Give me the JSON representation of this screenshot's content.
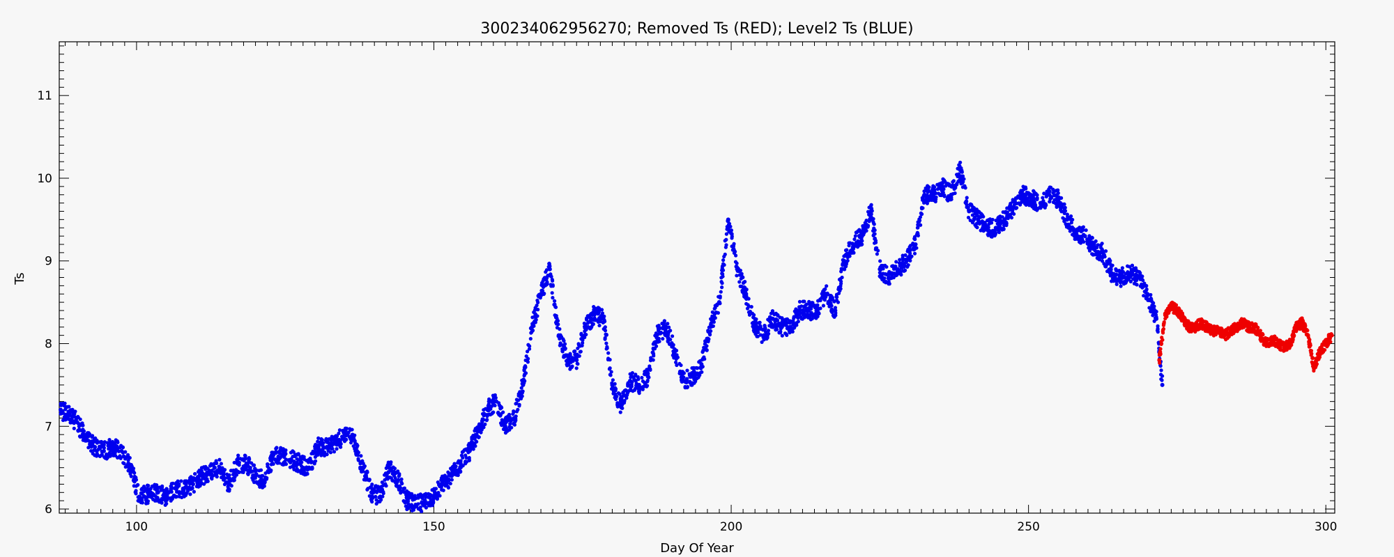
{
  "chart_data": {
    "type": "scatter",
    "title": "300234062956270; Removed Ts (RED); Level2 Ts (BLUE)",
    "xlabel": "Day Of Year",
    "ylabel": "Ts",
    "xlim": [
      87,
      301.5
    ],
    "ylim": [
      5.95,
      11.65
    ],
    "xticks": [
      100,
      150,
      200,
      250,
      300
    ],
    "yticks": [
      6,
      7,
      8,
      9,
      10,
      11
    ],
    "grid": false,
    "colors": {
      "level2": "#0000ee",
      "removed": "#ee0000",
      "axis": "#000000",
      "background": "#f7f7f7"
    },
    "series": [
      {
        "name": "Level2 Ts (BLUE)",
        "color": "#0000ee",
        "x": [
          87.0,
          88.5,
          90.0,
          91.5,
          93.0,
          94.5,
          96.0,
          97.5,
          99.0,
          100.5,
          102.0,
          103.5,
          105.0,
          106.5,
          108.0,
          109.5,
          111.0,
          112.5,
          114.0,
          115.5,
          117.0,
          118.5,
          120.0,
          121.5,
          123.0,
          124.5,
          126.0,
          127.5,
          129.0,
          130.5,
          132.0,
          133.5,
          135.0,
          136.5,
          138.0,
          139.5,
          141.0,
          142.5,
          144.0,
          145.5,
          147.0,
          148.5,
          150.0,
          151.5,
          153.0,
          154.5,
          156.0,
          157.5,
          159.0,
          160.5,
          162.0,
          163.5,
          165.0,
          166.5,
          168.0,
          169.5,
          171.0,
          172.5,
          174.0,
          175.5,
          177.0,
          178.5,
          180.0,
          181.5,
          183.0,
          184.5,
          186.0,
          187.5,
          189.0,
          190.5,
          192.0,
          193.5,
          195.0,
          196.5,
          198.0,
          199.5,
          201.0,
          202.5,
          204.0,
          205.5,
          207.0,
          208.5,
          210.0,
          211.5,
          213.0,
          214.5,
          216.0,
          217.5,
          219.0,
          220.5,
          222.0,
          223.5,
          225.0,
          226.5,
          228.0,
          229.5,
          231.0,
          232.5,
          234.0,
          235.5,
          237.0,
          238.5,
          240.0,
          241.5,
          243.0,
          244.5,
          246.0,
          247.5,
          249.0,
          250.5,
          252.0,
          253.5,
          255.0,
          256.5,
          258.0,
          259.5,
          261.0,
          262.5,
          264.0,
          265.5,
          267.0,
          268.5,
          270.0,
          271.5,
          272.5
        ],
        "y": [
          7.2,
          7.15,
          7.05,
          6.85,
          6.75,
          6.7,
          6.75,
          6.7,
          6.5,
          6.15,
          6.18,
          6.2,
          6.15,
          6.25,
          6.25,
          6.3,
          6.4,
          6.45,
          6.5,
          6.3,
          6.55,
          6.55,
          6.4,
          6.35,
          6.65,
          6.65,
          6.6,
          6.55,
          6.5,
          6.75,
          6.75,
          6.8,
          6.9,
          6.85,
          6.5,
          6.2,
          6.15,
          6.5,
          6.35,
          6.1,
          6.05,
          6.1,
          6.15,
          6.3,
          6.4,
          6.55,
          6.7,
          6.95,
          7.2,
          7.3,
          7.0,
          7.1,
          7.5,
          8.2,
          8.6,
          8.9,
          8.1,
          7.8,
          7.8,
          8.2,
          8.35,
          8.3,
          7.5,
          7.25,
          7.55,
          7.5,
          7.6,
          8.1,
          8.2,
          7.9,
          7.55,
          7.6,
          7.75,
          8.2,
          8.5,
          9.5,
          8.9,
          8.6,
          8.2,
          8.1,
          8.3,
          8.2,
          8.2,
          8.4,
          8.4,
          8.4,
          8.6,
          8.4,
          9.0,
          9.2,
          9.3,
          9.6,
          8.9,
          8.8,
          8.9,
          9.0,
          9.2,
          9.8,
          9.8,
          9.9,
          9.8,
          10.1,
          9.6,
          9.5,
          9.4,
          9.4,
          9.5,
          9.65,
          9.8,
          9.75,
          9.7,
          9.8,
          9.75,
          9.5,
          9.35,
          9.3,
          9.15,
          9.1,
          8.85,
          8.8,
          8.85,
          8.8,
          8.6,
          8.3,
          7.5
        ]
      },
      {
        "name": "Removed Ts (RED)",
        "color": "#ee0000",
        "x": [
          272.0,
          273.0,
          274.0,
          275.0,
          276.0,
          277.0,
          278.0,
          279.0,
          280.0,
          281.0,
          282.0,
          283.0,
          284.0,
          285.0,
          286.0,
          287.0,
          288.0,
          289.0,
          290.0,
          291.0,
          292.0,
          293.0,
          294.0,
          295.0,
          296.0,
          297.0,
          298.0,
          299.0,
          300.0,
          301.0
        ],
        "y": [
          7.8,
          8.35,
          8.45,
          8.4,
          8.3,
          8.2,
          8.2,
          8.25,
          8.2,
          8.15,
          8.15,
          8.1,
          8.15,
          8.2,
          8.25,
          8.2,
          8.2,
          8.1,
          8.0,
          8.05,
          8.0,
          7.95,
          8.0,
          8.2,
          8.25,
          8.1,
          7.7,
          7.9,
          8.0,
          8.1
        ]
      }
    ]
  }
}
